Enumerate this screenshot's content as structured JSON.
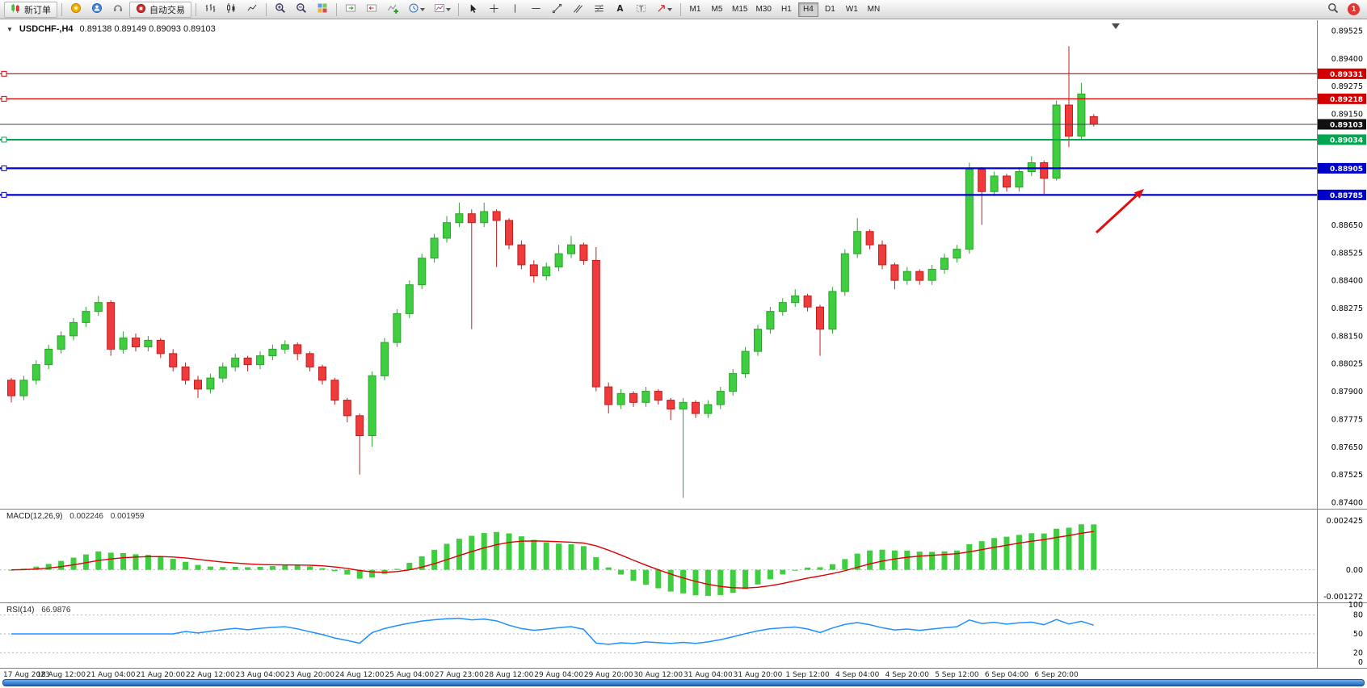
{
  "toolbar": {
    "new_order_label": "新订单",
    "autotrade_label": "自动交易",
    "timeframes": [
      "M1",
      "M5",
      "M15",
      "M30",
      "H1",
      "H4",
      "D1",
      "W1",
      "MN"
    ],
    "active_timeframe": "H4",
    "notification_count": "1"
  },
  "chart": {
    "symbol_title": "USDCHF-,H4",
    "ohlc": "0.89138 0.89149 0.89093 0.89103",
    "price_axis": {
      "labels": [
        "0.89525",
        "0.89400",
        "0.89275",
        "0.89150",
        "0.88650",
        "0.88525",
        "0.88400",
        "0.88275",
        "0.88150",
        "0.88025",
        "0.87900",
        "0.87775",
        "0.87650",
        "0.87525",
        "0.87400"
      ],
      "tags": [
        {
          "value": "0.89331",
          "bg": "#d40000"
        },
        {
          "value": "0.89218",
          "bg": "#d40000"
        },
        {
          "value": "0.89103",
          "bg": "#111111"
        },
        {
          "value": "0.89034",
          "bg": "#00a650"
        },
        {
          "value": "0.88905",
          "bg": "#0000cc"
        },
        {
          "value": "0.88785",
          "bg": "#0000cc"
        }
      ]
    }
  },
  "macd": {
    "name": "MACD(12,26,9)",
    "value_main": "0.002246",
    "value_signal": "0.001959",
    "axis": [
      "0.002425",
      "0.00",
      "-0.001272"
    ]
  },
  "rsi": {
    "name": "RSI(14)",
    "value": "66.9876",
    "axis": [
      "100",
      "80",
      "50",
      "20",
      "0"
    ],
    "levels": [
      80,
      50,
      20
    ]
  },
  "chart_data": {
    "type": "candlestick",
    "symbol": "USDCHF",
    "timeframe": "H4",
    "current_bar": {
      "open": 0.89138,
      "high": 0.89149,
      "low": 0.89093,
      "close": 0.89103
    },
    "price_range": [
      0.874,
      0.89525
    ],
    "x_labels": [
      "17 Aug 2023",
      "18 Aug 12:00",
      "21 Aug 04:00",
      "21 Aug 20:00",
      "22 Aug 12:00",
      "23 Aug 04:00",
      "23 Aug 20:00",
      "24 Aug 12:00",
      "25 Aug 04:00",
      "27 Aug 23:00",
      "28 Aug 12:00",
      "29 Aug 04:00",
      "29 Aug 20:00",
      "30 Aug 12:00",
      "31 Aug 04:00",
      "31 Aug 20:00",
      "1 Sep 12:00",
      "4 Sep 04:00",
      "4 Sep 20:00",
      "5 Sep 12:00",
      "6 Sep 04:00",
      "6 Sep 20:00"
    ],
    "label_every_n_candles": 4,
    "candles": [
      [
        0.8795,
        0.8796,
        0.8785,
        0.8788
      ],
      [
        0.8788,
        0.8797,
        0.8786,
        0.8795
      ],
      [
        0.8795,
        0.8804,
        0.8793,
        0.8802
      ],
      [
        0.8802,
        0.8811,
        0.88,
        0.8809
      ],
      [
        0.8809,
        0.8817,
        0.8807,
        0.8815
      ],
      [
        0.8815,
        0.8823,
        0.8813,
        0.8821
      ],
      [
        0.8821,
        0.8828,
        0.8819,
        0.8826
      ],
      [
        0.8826,
        0.8833,
        0.8824,
        0.883
      ],
      [
        0.883,
        0.8831,
        0.8806,
        0.8809
      ],
      [
        0.8809,
        0.8817,
        0.8807,
        0.8814
      ],
      [
        0.8814,
        0.8816,
        0.8808,
        0.881
      ],
      [
        0.881,
        0.8815,
        0.8808,
        0.8813
      ],
      [
        0.8813,
        0.8814,
        0.8805,
        0.8807
      ],
      [
        0.8807,
        0.8809,
        0.8799,
        0.8801
      ],
      [
        0.8801,
        0.8803,
        0.8793,
        0.8795
      ],
      [
        0.8795,
        0.8797,
        0.8787,
        0.8791
      ],
      [
        0.8791,
        0.8798,
        0.8789,
        0.8796
      ],
      [
        0.8796,
        0.8803,
        0.8794,
        0.8801
      ],
      [
        0.8801,
        0.8807,
        0.8799,
        0.8805
      ],
      [
        0.8805,
        0.8806,
        0.8799,
        0.8802
      ],
      [
        0.8802,
        0.8808,
        0.88,
        0.8806
      ],
      [
        0.8806,
        0.8811,
        0.8804,
        0.8809
      ],
      [
        0.8809,
        0.8813,
        0.8807,
        0.8811
      ],
      [
        0.8811,
        0.8812,
        0.8804,
        0.8807
      ],
      [
        0.8807,
        0.8808,
        0.8799,
        0.8801
      ],
      [
        0.8801,
        0.8802,
        0.8793,
        0.8795
      ],
      [
        0.8795,
        0.8796,
        0.8784,
        0.8786
      ],
      [
        0.8786,
        0.8787,
        0.8776,
        0.8779
      ],
      [
        0.8779,
        0.878,
        0.87525,
        0.877
      ],
      [
        0.877,
        0.8799,
        0.8765,
        0.8797
      ],
      [
        0.8797,
        0.8814,
        0.8795,
        0.8812
      ],
      [
        0.8812,
        0.8827,
        0.881,
        0.8825
      ],
      [
        0.8825,
        0.884,
        0.8823,
        0.8838
      ],
      [
        0.8838,
        0.8852,
        0.8836,
        0.885
      ],
      [
        0.885,
        0.8861,
        0.8848,
        0.8859
      ],
      [
        0.8859,
        0.8869,
        0.8857,
        0.8866
      ],
      [
        0.8866,
        0.8875,
        0.8864,
        0.887
      ],
      [
        0.887,
        0.8872,
        0.8818,
        0.8866
      ],
      [
        0.8866,
        0.8875,
        0.8864,
        0.8871
      ],
      [
        0.8871,
        0.8872,
        0.8846,
        0.8867
      ],
      [
        0.8867,
        0.8868,
        0.8854,
        0.8856
      ],
      [
        0.8856,
        0.8858,
        0.8845,
        0.8847
      ],
      [
        0.8847,
        0.8849,
        0.8839,
        0.8842
      ],
      [
        0.8842,
        0.8848,
        0.884,
        0.8846
      ],
      [
        0.8846,
        0.8856,
        0.8844,
        0.8852
      ],
      [
        0.8852,
        0.886,
        0.885,
        0.8856
      ],
      [
        0.8856,
        0.8857,
        0.8847,
        0.8849
      ],
      [
        0.8849,
        0.8855,
        0.879,
        0.8792
      ],
      [
        0.8792,
        0.8794,
        0.878,
        0.8784
      ],
      [
        0.8784,
        0.8791,
        0.8782,
        0.8789
      ],
      [
        0.8789,
        0.879,
        0.8783,
        0.8785
      ],
      [
        0.8785,
        0.8792,
        0.8783,
        0.879
      ],
      [
        0.879,
        0.8791,
        0.8784,
        0.8786
      ],
      [
        0.8786,
        0.8787,
        0.8777,
        0.8782
      ],
      [
        0.8782,
        0.8787,
        0.8742,
        0.8785
      ],
      [
        0.8785,
        0.8786,
        0.8778,
        0.878
      ],
      [
        0.878,
        0.8786,
        0.8778,
        0.8784
      ],
      [
        0.8784,
        0.8792,
        0.8782,
        0.879
      ],
      [
        0.879,
        0.88,
        0.8788,
        0.8798
      ],
      [
        0.8798,
        0.881,
        0.8796,
        0.8808
      ],
      [
        0.8808,
        0.882,
        0.8806,
        0.8818
      ],
      [
        0.8818,
        0.8828,
        0.8816,
        0.8826
      ],
      [
        0.8826,
        0.8832,
        0.8824,
        0.883
      ],
      [
        0.883,
        0.8836,
        0.8828,
        0.8833
      ],
      [
        0.8833,
        0.8834,
        0.8826,
        0.8828
      ],
      [
        0.8828,
        0.8829,
        0.8806,
        0.8818
      ],
      [
        0.8818,
        0.8837,
        0.8816,
        0.8835
      ],
      [
        0.8835,
        0.8854,
        0.8833,
        0.8852
      ],
      [
        0.8852,
        0.8868,
        0.885,
        0.8862
      ],
      [
        0.8862,
        0.8863,
        0.8854,
        0.8856
      ],
      [
        0.8856,
        0.8858,
        0.8845,
        0.8847
      ],
      [
        0.8847,
        0.8848,
        0.8836,
        0.884
      ],
      [
        0.884,
        0.8846,
        0.8838,
        0.8844
      ],
      [
        0.8844,
        0.8845,
        0.8838,
        0.884
      ],
      [
        0.884,
        0.8847,
        0.8838,
        0.8845
      ],
      [
        0.8845,
        0.8852,
        0.8843,
        0.885
      ],
      [
        0.885,
        0.8856,
        0.8848,
        0.8854
      ],
      [
        0.8854,
        0.8893,
        0.8852,
        0.889
      ],
      [
        0.889,
        0.8891,
        0.8865,
        0.888
      ],
      [
        0.888,
        0.8889,
        0.8878,
        0.8887
      ],
      [
        0.8887,
        0.8888,
        0.888,
        0.8882
      ],
      [
        0.8882,
        0.8891,
        0.888,
        0.8889
      ],
      [
        0.8889,
        0.8896,
        0.8887,
        0.8893
      ],
      [
        0.8893,
        0.8894,
        0.8879,
        0.8886
      ],
      [
        0.8886,
        0.8921,
        0.8885,
        0.8919
      ],
      [
        0.8919,
        0.89455,
        0.89,
        0.8905
      ],
      [
        0.8905,
        0.8929,
        0.8903,
        0.8924
      ],
      [
        0.89138,
        0.89149,
        0.89093,
        0.89103
      ]
    ],
    "hlines": [
      {
        "price": 0.89331,
        "color": "#d40000",
        "width": 1.2,
        "handle": true
      },
      {
        "price": 0.89218,
        "color": "#d40000",
        "width": 1.2,
        "handle": true
      },
      {
        "price": 0.89103,
        "color": "#444444",
        "width": 1,
        "handle": false
      },
      {
        "price": 0.89034,
        "color": "#00a650",
        "width": 2,
        "handle": true
      },
      {
        "price": 0.88905,
        "color": "#0000cc",
        "width": 2.2,
        "handle": true
      },
      {
        "price": 0.88785,
        "color": "#0000cc",
        "width": 2.2,
        "handle": true
      }
    ],
    "indicators": [
      {
        "type": "MACD",
        "params": [
          12,
          26,
          9
        ],
        "value_main": 0.002246,
        "value_signal": 0.001959,
        "axis_max": 0.002425,
        "axis_min": -0.001272,
        "histogram_color": "#3fce3f",
        "signal_color": "#e00000"
      },
      {
        "type": "RSI",
        "params": [
          14
        ],
        "value": 66.9876,
        "levels": [
          80,
          50,
          20
        ],
        "line_color": "#1e90ff"
      }
    ],
    "annotations": [
      {
        "type": "arrow",
        "direction": "up-right",
        "color": "#e01010",
        "target_price": 0.88785
      }
    ]
  }
}
